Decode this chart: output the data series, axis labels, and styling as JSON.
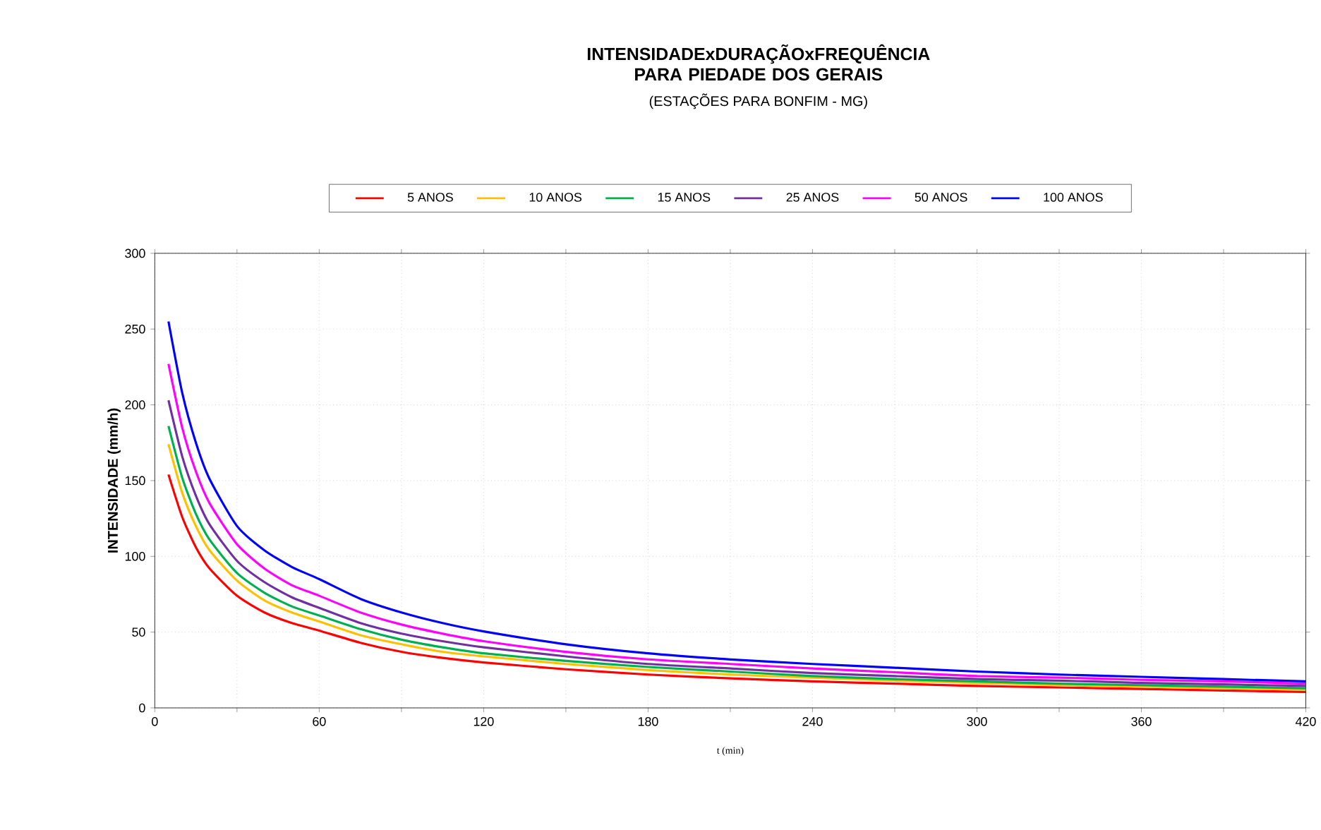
{
  "chart_data": {
    "type": "line",
    "title": "INTENSIDADExDURAÇÃOxFREQUÊNCIA PARA PIEDADE DOS GERAIS",
    "subtitle": "(ESTAÇÕES PARA BONFIM - MG)",
    "xlabel": "t (min)",
    "ylabel": "INTENSIDADE (mm/h)",
    "x": [
      5,
      10,
      15,
      20,
      30,
      40,
      50,
      60,
      75,
      90,
      105,
      120,
      150,
      180,
      210,
      240,
      270,
      300,
      330,
      360,
      390,
      420
    ],
    "series": [
      {
        "name": "5 ANOS",
        "color": "#ff0000",
        "values": [
          154,
          126,
          106,
          92,
          74,
          63,
          56,
          51,
          43,
          37,
          33,
          30,
          25.5,
          22,
          19.5,
          17.5,
          16,
          14.5,
          13.5,
          12.5,
          11.5,
          10.5
        ]
      },
      {
        "name": "10 ANOS",
        "color": "#ffc000",
        "values": [
          174,
          142,
          120,
          104,
          84,
          71,
          63,
          57,
          48,
          42,
          37,
          34,
          29,
          25,
          22,
          20,
          18,
          16.5,
          15,
          14,
          13,
          12
        ]
      },
      {
        "name": "15 ANOS",
        "color": "#00b050",
        "values": [
          186,
          152,
          128,
          111,
          89,
          76,
          67,
          61,
          52,
          45,
          40,
          36,
          31,
          27,
          24,
          21,
          19,
          17.5,
          16,
          15,
          14,
          13
        ]
      },
      {
        "name": "25 ANOS",
        "color": "#7030a0",
        "values": [
          203,
          166,
          140,
          121,
          97,
          83,
          73,
          66,
          56,
          49,
          44,
          40,
          34,
          29,
          26,
          23,
          21,
          19,
          18,
          16.5,
          15.5,
          14.5
        ]
      },
      {
        "name": "50 ANOS",
        "color": "#ff00ff",
        "values": [
          227,
          185,
          156,
          135,
          108,
          92,
          81,
          74,
          63,
          55,
          49,
          44,
          37,
          32,
          29,
          26,
          23.5,
          21,
          20,
          18.5,
          17.5,
          16
        ]
      },
      {
        "name": "100 ANOS",
        "color": "#0000ff",
        "values": [
          255,
          208,
          175,
          151,
          120,
          104,
          93,
          85,
          72,
          63,
          56,
          50.5,
          42,
          36,
          32,
          29,
          26.5,
          24,
          22,
          20.5,
          19,
          17.5
        ]
      }
    ],
    "xlim": [
      0,
      420
    ],
    "ylim": [
      0,
      300
    ],
    "xticks": [
      0,
      {
        "value": 30,
        "label": null
      },
      60,
      {
        "value": 90,
        "label": null
      },
      120,
      {
        "value": 150,
        "label": null
      },
      180,
      {
        "value": 210,
        "label": null
      },
      240,
      {
        "value": 270,
        "label": null
      },
      300,
      {
        "value": 330,
        "label": null
      },
      360,
      {
        "value": 390,
        "label": null
      },
      420
    ],
    "yticks": [
      0,
      50,
      100,
      150,
      200,
      250,
      300
    ],
    "grid": true,
    "legend": "top"
  }
}
